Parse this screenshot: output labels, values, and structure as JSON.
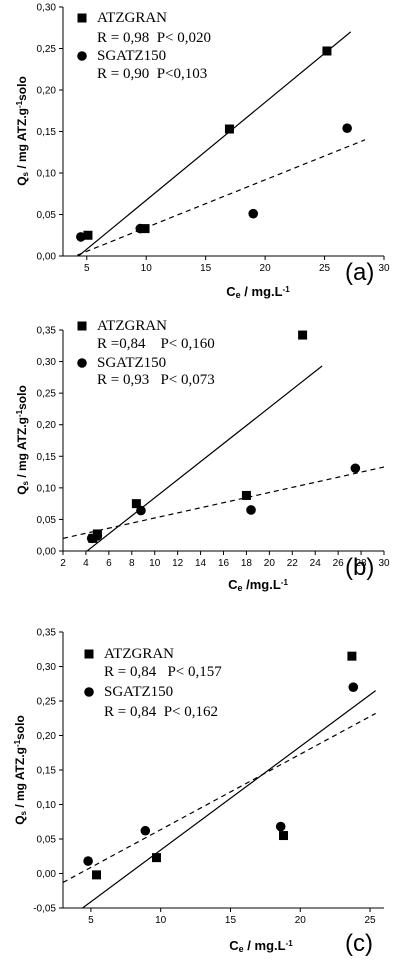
{
  "figure": {
    "colors": {
      "ink": "#000000",
      "background": "#ffffff"
    },
    "marker_shapes": {
      "ATZGRAN": "square",
      "SGATZ150": "circle"
    },
    "line_styles": {
      "ATZGRAN": "solid",
      "SGATZ150": "dashed"
    }
  },
  "chart_data": [
    {
      "panel": "(a)",
      "type": "scatter",
      "xlabel": {
        "main": "C",
        "sub": "e",
        "rest": " / mg.L",
        "sup": "-1"
      },
      "ylabel": {
        "main": "Q",
        "sub": "s",
        "rest": " / mg ATZ.g",
        "sup": "-1",
        "rest2": "solo"
      },
      "xlim": [
        3,
        30
      ],
      "ylim": [
        0.0,
        0.3
      ],
      "xticks": [
        5,
        10,
        15,
        20,
        25,
        30
      ],
      "xticklabels": [
        "5",
        "10",
        "15",
        "20",
        "25",
        "30"
      ],
      "yticks": [
        0.0,
        0.05,
        0.1,
        0.15,
        0.2,
        0.25,
        0.3
      ],
      "yticklabels": [
        "0,00",
        "0,05",
        "0,10",
        "0,15",
        "0,20",
        "0,25",
        "0,30"
      ],
      "legend": [
        {
          "name": "ATZGRAN",
          "marker": "square",
          "stats": "R = 0,98  P< 0,020"
        },
        {
          "name": "SGATZ150",
          "marker": "circle",
          "stats": "R = 0,90  P<0,103"
        }
      ],
      "series": [
        {
          "name": "ATZGRAN",
          "marker": "square",
          "x": [
            5.1,
            9.9,
            17.0,
            25.2
          ],
          "y": [
            0.025,
            0.033,
            0.153,
            0.247
          ],
          "fit": {
            "style": "solid",
            "x": [
              4.3,
              27.2
            ],
            "y": [
              0.0,
              0.27
            ]
          }
        },
        {
          "name": "SGATZ150",
          "marker": "circle",
          "x": [
            4.5,
            9.5,
            19.0,
            26.9
          ],
          "y": [
            0.023,
            0.033,
            0.051,
            0.154
          ],
          "fit": {
            "style": "dashed",
            "x": [
              4.2,
              28.4
            ],
            "y": [
              0.001,
              0.14
            ]
          }
        }
      ]
    },
    {
      "panel": "(b)",
      "type": "scatter",
      "xlabel": {
        "main": "C",
        "sub": "e",
        "rest": " /mg.L",
        "sup": "-1"
      },
      "ylabel": {
        "main": "Q",
        "sub": "s",
        "rest": " / mg ATZ.g",
        "sup": "-1",
        "rest2": "solo"
      },
      "xlim": [
        2,
        30
      ],
      "ylim": [
        0.0,
        0.35
      ],
      "xticks": [
        2,
        4,
        6,
        8,
        10,
        12,
        14,
        16,
        18,
        20,
        22,
        24,
        26,
        28,
        30
      ],
      "xticklabels": [
        "2",
        "4",
        "6",
        "8",
        "10",
        "12",
        "14",
        "16",
        "18",
        "20",
        "22",
        "24",
        "26",
        "28",
        "30"
      ],
      "yticks": [
        0.0,
        0.05,
        0.1,
        0.15,
        0.2,
        0.25,
        0.3,
        0.35
      ],
      "yticklabels": [
        "0,00",
        "0,05",
        "0,10",
        "0,15",
        "0,20",
        "0,25",
        "0,30",
        "0,35"
      ],
      "legend": [
        {
          "name": "ATZGRAN",
          "marker": "square",
          "stats": "R =0,84    P< 0,160"
        },
        {
          "name": "SGATZ150",
          "marker": "circle",
          "stats": "R = 0,93   P< 0,073"
        }
      ],
      "series": [
        {
          "name": "ATZGRAN",
          "marker": "square",
          "x": [
            4.6,
            5.0,
            8.4,
            18.0,
            22.9
          ],
          "y": [
            0.02,
            0.027,
            0.075,
            0.088,
            0.342
          ],
          "fit": {
            "style": "solid",
            "x": [
              4.1,
              24.6
            ],
            "y": [
              0.0,
              0.293
            ]
          }
        },
        {
          "name": "SGATZ150",
          "marker": "circle",
          "x": [
            4.5,
            5.0,
            8.8,
            18.4,
            27.5
          ],
          "y": [
            0.02,
            0.024,
            0.064,
            0.065,
            0.131
          ],
          "fit": {
            "style": "dashed",
            "x": [
              2.0,
              30.0
            ],
            "y": [
              0.02,
              0.133
            ]
          }
        }
      ]
    },
    {
      "panel": "(c)",
      "type": "scatter",
      "xlabel": {
        "main": "C",
        "sub": "e",
        "rest": " / mg.L",
        "sup": "-1"
      },
      "ylabel": {
        "main": "Q",
        "sub": "s",
        "rest": " / mg ATZ.g",
        "sup": "-1",
        "rest2": "solo"
      },
      "xlim": [
        3,
        26
      ],
      "ylim": [
        -0.05,
        0.35
      ],
      "xticks": [
        5,
        10,
        15,
        20,
        25
      ],
      "xticklabels": [
        "5",
        "10",
        "15",
        "20",
        "25"
      ],
      "yticks": [
        -0.05,
        0.0,
        0.05,
        0.1,
        0.15,
        0.2,
        0.25,
        0.3,
        0.35
      ],
      "yticklabels": [
        "-0,05",
        "0,00",
        "0,05",
        "0,10",
        "0,15",
        "0,20",
        "0,25",
        "0,30",
        "0,35"
      ],
      "legend": [
        {
          "name": "ATZGRAN",
          "marker": "square",
          "stats": "R = 0,84   P< 0,157"
        },
        {
          "name": "SGATZ150",
          "marker": "circle",
          "stats": "R = 0,84  P< 0,162"
        }
      ],
      "series": [
        {
          "name": "ATZGRAN",
          "marker": "square",
          "x": [
            5.4,
            9.7,
            18.8,
            23.7
          ],
          "y": [
            -0.002,
            0.023,
            0.055,
            0.315
          ],
          "fit": {
            "style": "solid",
            "x": [
              4.4,
              25.4
            ],
            "y": [
              -0.05,
              0.265
            ]
          }
        },
        {
          "name": "SGATZ150",
          "marker": "circle",
          "x": [
            4.8,
            8.9,
            18.6,
            23.8
          ],
          "y": [
            0.018,
            0.062,
            0.068,
            0.27
          ],
          "fit": {
            "style": "dashed",
            "x": [
              3.0,
              25.4
            ],
            "y": [
              -0.013,
              0.232
            ]
          }
        }
      ]
    }
  ]
}
